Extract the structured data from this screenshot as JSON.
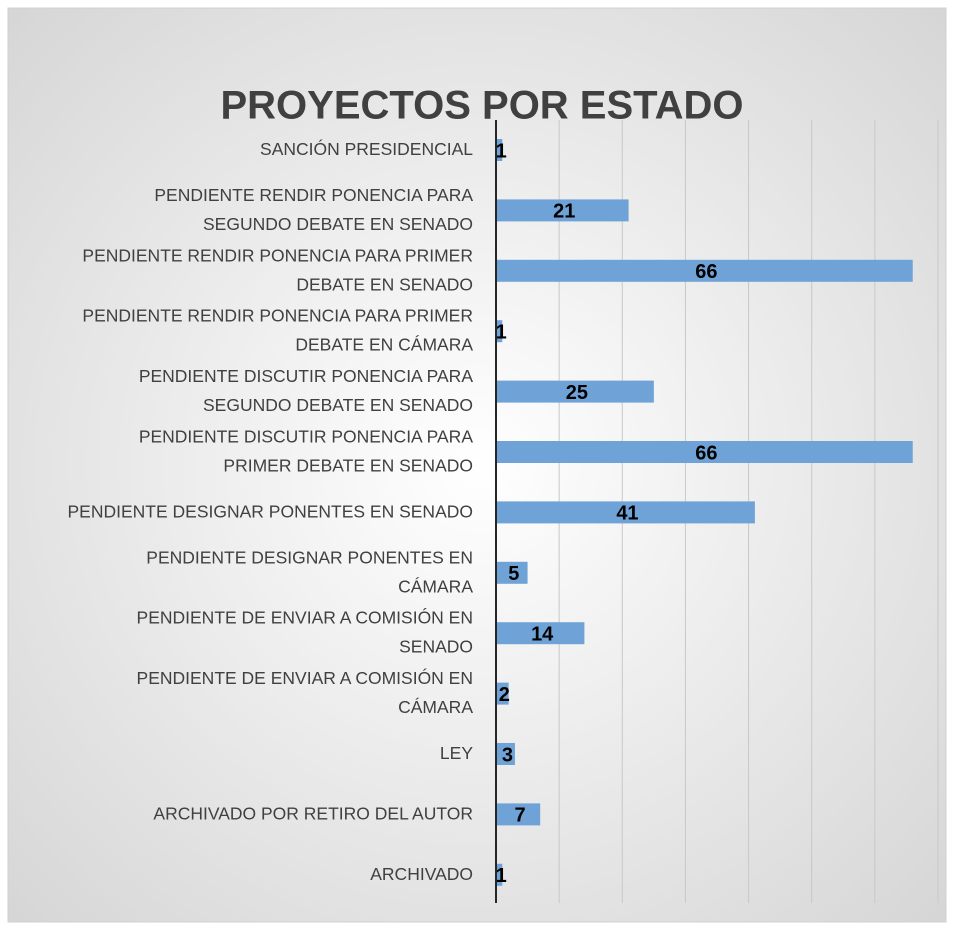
{
  "chart_data": {
    "type": "hbar",
    "title": "PROYECTOS POR ESTADO",
    "categories": [
      [
        "SANCIÓN PRESIDENCIAL"
      ],
      [
        "PENDIENTE RENDIR PONENCIA PARA",
        "SEGUNDO DEBATE EN SENADO"
      ],
      [
        "PENDIENTE RENDIR PONENCIA PARA PRIMER",
        "DEBATE EN SENADO"
      ],
      [
        "PENDIENTE RENDIR PONENCIA PARA PRIMER",
        "DEBATE EN CÁMARA"
      ],
      [
        "PENDIENTE DISCUTIR PONENCIA PARA",
        "SEGUNDO DEBATE EN SENADO"
      ],
      [
        "PENDIENTE DISCUTIR PONENCIA PARA",
        "PRIMER DEBATE EN SENADO"
      ],
      [
        "PENDIENTE DESIGNAR PONENTES EN SENADO"
      ],
      [
        "PENDIENTE DESIGNAR PONENTES EN",
        "CÁMARA"
      ],
      [
        "PENDIENTE DE ENVIAR A COMISIÓN EN",
        "SENADO"
      ],
      [
        "PENDIENTE DE ENVIAR A COMISIÓN EN",
        "CÁMARA"
      ],
      [
        "LEY"
      ],
      [
        "ARCHIVADO POR RETIRO DEL AUTOR"
      ],
      [
        "ARCHIVADO"
      ]
    ],
    "values": [
      1,
      21,
      66,
      1,
      25,
      66,
      41,
      5,
      14,
      2,
      3,
      7,
      1
    ],
    "color": "#6fa3d8",
    "xlim": [
      0,
      70
    ],
    "xticks": [
      0,
      10,
      20,
      30,
      40,
      50,
      60,
      70
    ],
    "grid": true
  }
}
